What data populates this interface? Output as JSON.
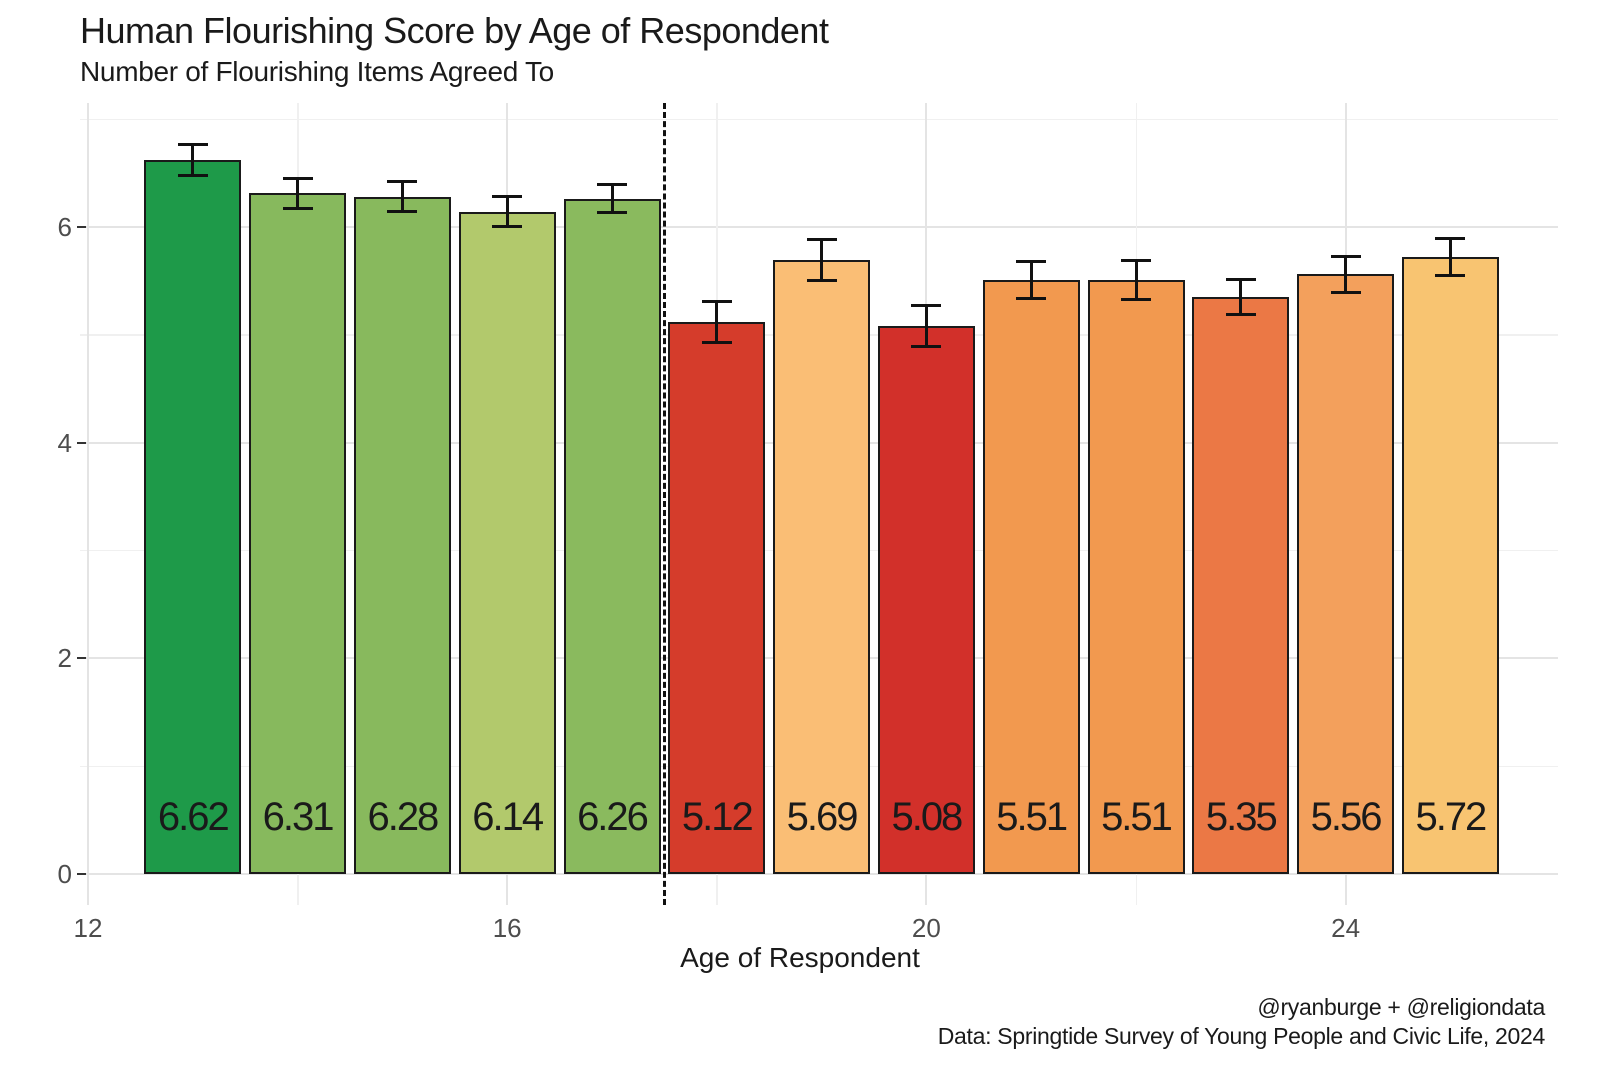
{
  "header": {
    "title": "Human Flourishing Score by Age of Respondent",
    "subtitle": "Number of Flourishing Items Agreed To"
  },
  "caption": {
    "line1": "@ryanburge + @religiondata",
    "line2": "Data: Springtide Survey of Young People and Civic Life, 2024"
  },
  "chart_data": {
    "type": "bar",
    "title": "Human Flourishing Score by Age of Respondent",
    "subtitle": "Number of Flourishing Items Agreed To",
    "xlabel": "Age of Respondent",
    "ylabel": "",
    "x": [
      13,
      14,
      15,
      16,
      17,
      18,
      19,
      20,
      21,
      22,
      23,
      24,
      25
    ],
    "values": [
      6.62,
      6.31,
      6.28,
      6.14,
      6.26,
      5.12,
      5.69,
      5.08,
      5.51,
      5.51,
      5.35,
      5.56,
      5.72
    ],
    "errors": [
      0.14,
      0.14,
      0.14,
      0.14,
      0.13,
      0.19,
      0.19,
      0.19,
      0.17,
      0.18,
      0.16,
      0.17,
      0.17
    ],
    "bar_colors": [
      "#1E9A49",
      "#87B95D",
      "#88B95D",
      "#B2C96C",
      "#8ABA5E",
      "#D53C2B",
      "#FABE75",
      "#D2302A",
      "#F2994F",
      "#F2994F",
      "#EB7845",
      "#F3A05C",
      "#F8C471"
    ],
    "bar_labels": [
      "6.62",
      "6.31",
      "6.28",
      "6.14",
      "6.26",
      "5.12",
      "5.69",
      "5.08",
      "5.51",
      "5.51",
      "5.35",
      "5.56",
      "5.72"
    ],
    "x_ticks": [
      12,
      16,
      20,
      24
    ],
    "x_minor_ticks": [
      14,
      18,
      22
    ],
    "y_ticks": [
      0,
      2,
      4,
      6
    ],
    "y_minor_ticks": [
      1,
      3,
      5,
      7
    ],
    "ylim": [
      -0.29,
      7.15
    ],
    "xlim": [
      11.92,
      26.03
    ],
    "grid": true,
    "legend_position": "none",
    "annotations": {
      "vline_x": 17.5,
      "vline_style": "dashed",
      "vline_color": "#111111"
    }
  },
  "colors": {
    "background": "#ffffff",
    "grid_major": "#e4e4e4",
    "grid_minor": "#f0f0f0",
    "bar_border": "#1a1a1a",
    "error_bar": "#111111",
    "title_text": "#1a1a1a",
    "tick_text": "#4d4d4d"
  }
}
